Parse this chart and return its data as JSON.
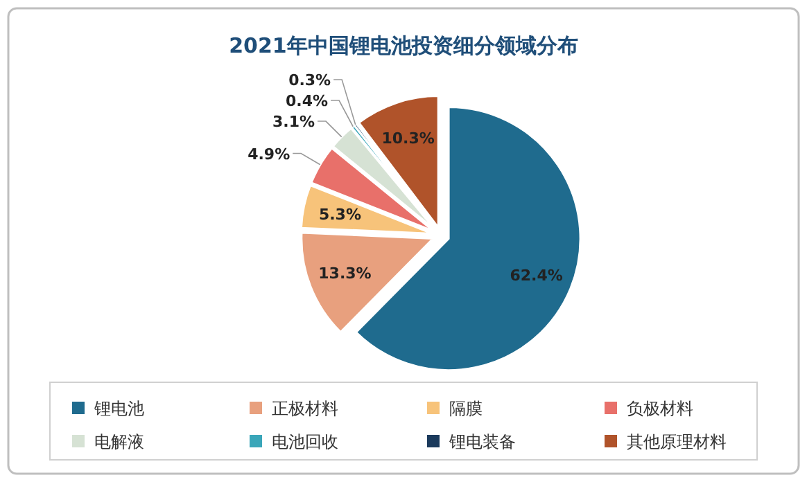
{
  "chart_data": {
    "type": "pie",
    "title": "2021年中国锂电池投资细分领域分布",
    "categories": [
      "锂电池",
      "正极材料",
      "隔膜",
      "负极材料",
      "电解液",
      "电池回收",
      "锂电装备",
      "其他原理材料"
    ],
    "values": [
      62.4,
      13.3,
      5.3,
      4.9,
      3.1,
      0.4,
      0.3,
      10.3
    ],
    "colors": [
      "#1f6b8e",
      "#e8a07e",
      "#f7c37a",
      "#e8706a",
      "#d6e2d4",
      "#3aa6b9",
      "#1b3a5c",
      "#b0532a"
    ],
    "value_labels": [
      "62.4%",
      "13.3%",
      "5.3%",
      "4.9%",
      "3.1%",
      "0.4%",
      "0.3%",
      "10.3%"
    ],
    "legend": "bottom"
  }
}
